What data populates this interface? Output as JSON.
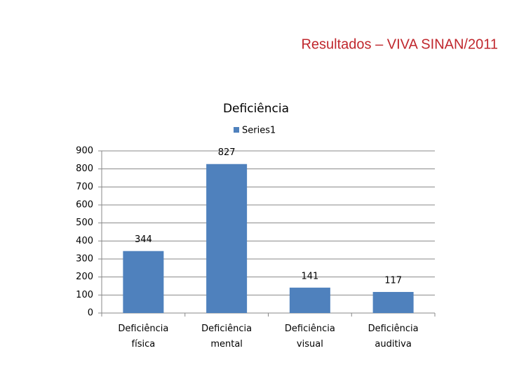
{
  "slide_title": "Resultados – VIVA SINAN/2011",
  "chart_data": {
    "type": "bar",
    "title": "Deficiência",
    "categories": [
      "Deficiência física",
      "Deficiência mental",
      "Deficiência visual",
      "Deficiência auditiva"
    ],
    "series": [
      {
        "name": "Series1",
        "color": "#4f81bd",
        "values": [
          344,
          827,
          141,
          117
        ]
      }
    ],
    "ylim": [
      0,
      900
    ],
    "yticks": [
      0,
      100,
      200,
      300,
      400,
      500,
      600,
      700,
      800,
      900
    ],
    "grid": true,
    "legend": "top"
  }
}
